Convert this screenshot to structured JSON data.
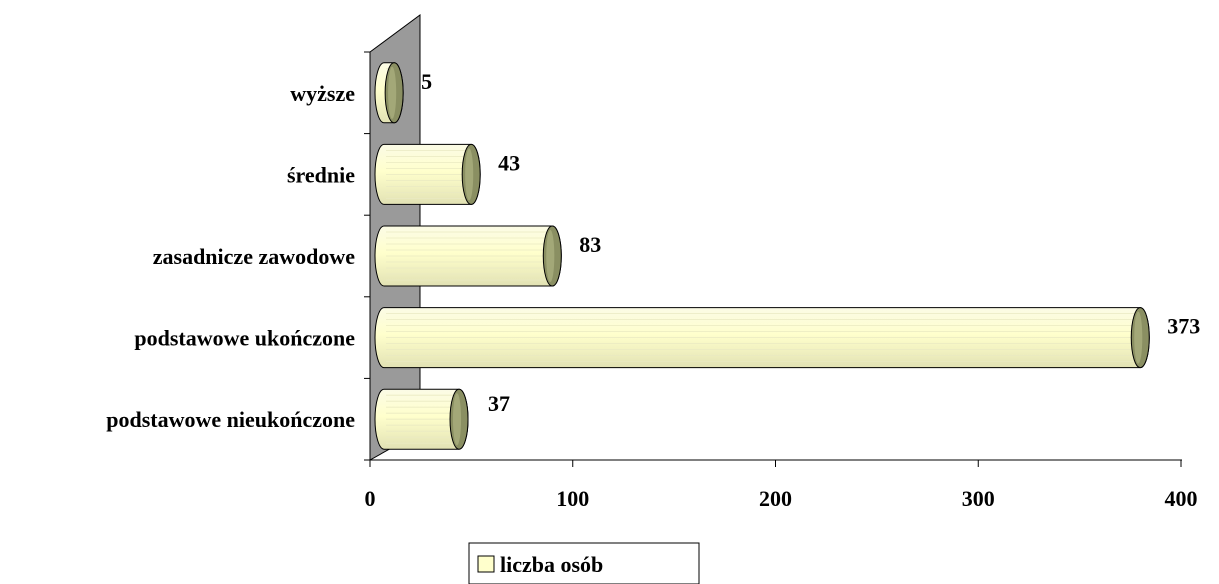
{
  "chart_data": {
    "type": "bar",
    "orientation": "horizontal",
    "style": "3d-cylinder",
    "categories": [
      "podstawowe nieukończone",
      "podstawowe ukończone",
      "zasadnicze zawodowe",
      "średnie",
      "wyższe"
    ],
    "series": [
      {
        "name": "liczba osób",
        "values": [
          37,
          373,
          83,
          43,
          5
        ],
        "color": "#ffffcc"
      }
    ],
    "data_labels": [
      "37",
      "373",
      "83",
      "43",
      "5"
    ],
    "xlim": [
      0,
      400
    ],
    "x_ticks": [
      0,
      100,
      200,
      300,
      400
    ],
    "x_tick_labels": [
      "0",
      "100",
      "200",
      "300",
      "400"
    ],
    "legend_position": "bottom",
    "grid": false,
    "colors": {
      "bar_fill": "#ffffcc",
      "bar_cap": "#8a8f62",
      "back_wall": "#9a9a9a"
    }
  },
  "legend": {
    "label": "liczba osób"
  }
}
